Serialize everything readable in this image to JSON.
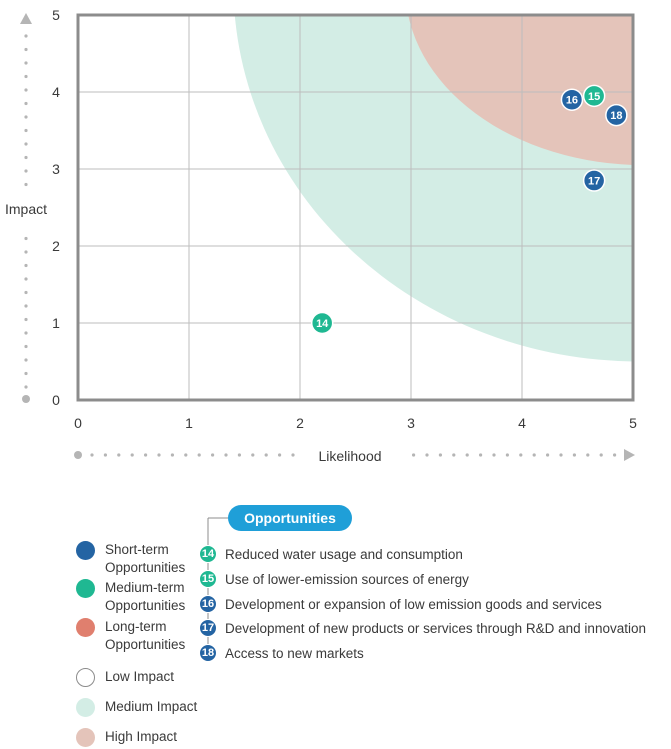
{
  "chart_data": {
    "type": "scatter",
    "xlabel": "Likelihood",
    "ylabel": "Impact",
    "xlim": [
      0,
      5
    ],
    "ylim": [
      0,
      5
    ],
    "x_ticks": [
      "0",
      "1",
      "2",
      "3",
      "4",
      "5"
    ],
    "y_ticks": [
      "0",
      "1",
      "2",
      "3",
      "4",
      "5"
    ],
    "grid": true,
    "points": [
      {
        "id": "14",
        "x": 2.2,
        "y": 1.0,
        "term": "medium"
      },
      {
        "id": "15",
        "x": 4.65,
        "y": 3.95,
        "term": "medium"
      },
      {
        "id": "16",
        "x": 4.45,
        "y": 3.9,
        "term": "short"
      },
      {
        "id": "17",
        "x": 4.65,
        "y": 2.85,
        "term": "short"
      },
      {
        "id": "18",
        "x": 4.85,
        "y": 3.7,
        "term": "short"
      }
    ]
  },
  "colors": {
    "short": "#2464a3",
    "medium": "#1fb892",
    "long": "#e07f6e",
    "low_zone": "#ffffff",
    "medium_zone": "#d3ede5",
    "high_zone": "#e4c4ba",
    "grid": "#bdbdbd",
    "frame": "#8c8c8c",
    "badge": "#1f9fd8"
  },
  "legend": {
    "title": "Opportunities",
    "items": [
      {
        "label_line1": "Short-term",
        "label_line2": "Opportunities",
        "swatch": "short"
      },
      {
        "label_line1": "Medium-term",
        "label_line2": "Opportunities",
        "swatch": "medium"
      },
      {
        "label_line1": "Long-term",
        "label_line2": "Opportunities",
        "swatch": "long"
      },
      {
        "label_line1": "Low Impact",
        "label_line2": "",
        "swatch": "low_zone"
      },
      {
        "label_line1": "Medium Impact",
        "label_line2": "",
        "swatch": "medium_zone"
      },
      {
        "label_line1": "High Impact",
        "label_line2": "",
        "swatch": "high_zone"
      }
    ]
  },
  "opportunities": [
    {
      "id": "14",
      "text": "Reduced water usage and consumption",
      "term": "medium"
    },
    {
      "id": "15",
      "text": "Use of lower-emission sources of energy",
      "term": "medium"
    },
    {
      "id": "16",
      "text": "Development or expansion of low emission goods and services",
      "term": "short"
    },
    {
      "id": "17",
      "text": "Development of new products or services through R&D and innovation",
      "term": "short"
    },
    {
      "id": "18",
      "text": "Access to new markets",
      "term": "short"
    }
  ]
}
